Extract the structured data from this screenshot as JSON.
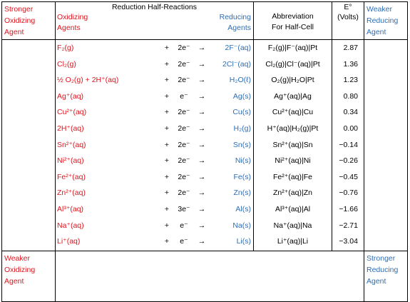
{
  "left_top": [
    "Stronger",
    "Oxidizing",
    "Agent"
  ],
  "left_bottom": [
    "Weaker",
    "Oxidizing",
    "Agent"
  ],
  "right_top": [
    "Weaker",
    "Reducing",
    "Agent"
  ],
  "right_bottom": [
    "Stronger",
    "Reducing",
    "Agent"
  ],
  "header": {
    "title": "Reduction Half-Reactions",
    "oxidizing": [
      "Oxidizing",
      "Agents"
    ],
    "reducing": [
      "Reducing",
      "Agents"
    ],
    "abbrev": [
      "Abbreviation",
      "For Half-Cell"
    ],
    "eo": [
      "E°",
      "(Volts)"
    ]
  },
  "rows": [
    {
      "ox": "F₂(g)",
      "plus": "+",
      "e": "2e⁻",
      "arrow": "→",
      "red": "2F⁻(aq)",
      "abbr": "F₂(g)|F⁻(aq)|Pt",
      "eo": "2.87"
    },
    {
      "ox": "Cl₂(g)",
      "plus": "+",
      "e": "2e⁻",
      "arrow": "→",
      "red": "2Cl⁻(aq)",
      "abbr": "Cl₂(g)|Cl⁻(aq)|Pt",
      "eo": "1.36"
    },
    {
      "ox": "½ O₂(g) + 2H⁺(aq)",
      "plus": "+",
      "e": "2e⁻",
      "arrow": "→",
      "red": "H₂O(ℓ)",
      "abbr": "O₂(g)|H₂O|Pt",
      "eo": "1.23"
    },
    {
      "ox": "Ag⁺(aq)",
      "plus": "+",
      "e": "e⁻",
      "arrow": "→",
      "red": "Ag(s)",
      "abbr": "Ag⁺(aq)|Ag",
      "eo": "0.80"
    },
    {
      "ox": "Cu²⁺(aq)",
      "plus": "+",
      "e": "2e⁻",
      "arrow": "→",
      "red": "Cu(s)",
      "abbr": "Cu²⁺(aq)|Cu",
      "eo": "0.34"
    },
    {
      "ox": "2H⁺(aq)",
      "plus": "+",
      "e": "2e⁻",
      "arrow": "→",
      "red": "H₂(g)",
      "abbr": "H⁺(aq)|H₂(g)|Pt",
      "eo": "0.00"
    },
    {
      "ox": "Sn²⁺(aq)",
      "plus": "+",
      "e": "2e⁻",
      "arrow": "→",
      "red": "Sn(s)",
      "abbr": "Sn²⁺(aq)|Sn",
      "eo": "−0.14"
    },
    {
      "ox": "Ni²⁺(aq)",
      "plus": "+",
      "e": "2e⁻",
      "arrow": "→",
      "red": "Ni(s)",
      "abbr": "Ni²⁺(aq)|Ni",
      "eo": "−0.26"
    },
    {
      "ox": "Fe²⁺(aq)",
      "plus": "+",
      "e": "2e⁻",
      "arrow": "→",
      "red": "Fe(s)",
      "abbr": "Fe²⁺(aq)|Fe",
      "eo": "−0.45"
    },
    {
      "ox": "Zn²⁺(aq)",
      "plus": "+",
      "e": "2e⁻",
      "arrow": "→",
      "red": "Zn(s)",
      "abbr": "Zn²⁺(aq)|Zn",
      "eo": "−0.76"
    },
    {
      "ox": "Al³⁺(aq)",
      "plus": "+",
      "e": "3e⁻",
      "arrow": "→",
      "red": "Al(s)",
      "abbr": "Al³⁺(aq)|Al",
      "eo": "−1.66"
    },
    {
      "ox": "Na⁺(aq)",
      "plus": "+",
      "e": "e⁻",
      "arrow": "→",
      "red": "Na(s)",
      "abbr": "Na⁺(aq)|Na",
      "eo": "−2.71"
    },
    {
      "ox": "Li⁺(aq)",
      "plus": "+",
      "e": "e⁻",
      "arrow": "→",
      "red": "Li(s)",
      "abbr": "Li⁺(aq)|Li",
      "eo": "−3.04"
    }
  ]
}
